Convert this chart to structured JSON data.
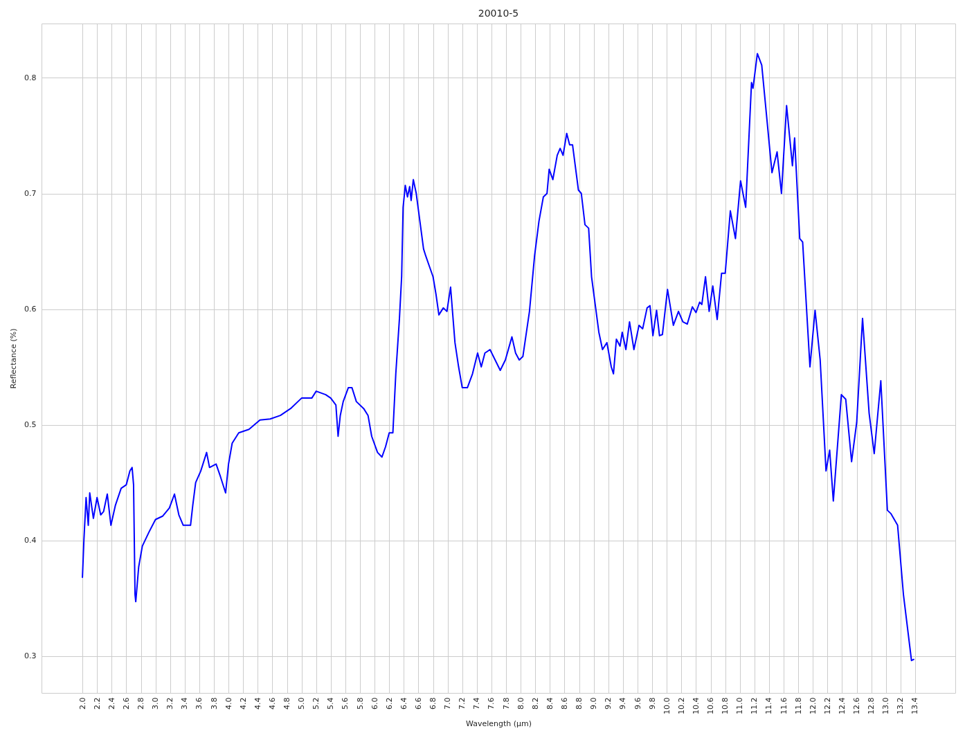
{
  "chart_data": {
    "type": "line",
    "title": "20010-5",
    "xlabel": "Wavelength (µm)",
    "ylabel": "Reflectance (%)",
    "xlim": [
      1.44,
      13.95
    ],
    "ylim": [
      0.268,
      0.847
    ],
    "xticks": [
      {
        "value": 2,
        "label": "2.0"
      },
      2.2,
      2.4,
      2.6,
      2.8,
      {
        "value": 3,
        "label": "3.0"
      },
      3.2,
      3.4,
      3.6,
      3.8,
      {
        "value": 4,
        "label": "4.0"
      },
      4.2,
      4.4,
      4.6,
      4.8,
      {
        "value": 5,
        "label": "5.0"
      },
      5.2,
      5.4,
      5.6,
      5.8,
      {
        "value": 6,
        "label": "6.0"
      },
      6.2,
      6.4,
      6.6,
      6.8,
      {
        "value": 7,
        "label": "7.0"
      },
      7.2,
      7.4,
      7.6,
      7.8,
      {
        "value": 8,
        "label": "8.0"
      },
      8.2,
      8.4,
      8.6,
      8.8,
      {
        "value": 9,
        "label": "9.0"
      },
      9.2,
      9.4,
      9.6,
      9.8,
      {
        "value": 10,
        "label": "10.0"
      },
      10.2,
      10.4,
      10.6,
      10.8,
      {
        "value": 11,
        "label": "11.0"
      },
      11.2,
      11.4,
      11.6,
      11.8,
      {
        "value": 12,
        "label": "12.0"
      },
      12.2,
      12.4,
      12.6,
      12.8,
      {
        "value": 13,
        "label": "13.0"
      },
      13.2,
      13.4
    ],
    "yticks": [
      0.3,
      0.4,
      0.5,
      0.6,
      0.7,
      0.8
    ],
    "grid": true,
    "line_style": "solid",
    "x": [
      2.0,
      2.02,
      2.05,
      2.08,
      2.1,
      2.15,
      2.2,
      2.25,
      2.29,
      2.34,
      2.39,
      2.45,
      2.53,
      2.6,
      2.65,
      2.68,
      2.7,
      2.72,
      2.73,
      2.77,
      2.82,
      2.91,
      3.0,
      3.1,
      3.19,
      3.26,
      3.32,
      3.38,
      3.48,
      3.51,
      3.55,
      3.62,
      3.7,
      3.74,
      3.83,
      3.89,
      3.96,
      4.0,
      4.05,
      4.14,
      4.28,
      4.43,
      4.57,
      4.71,
      4.85,
      5.0,
      5.14,
      5.2,
      5.33,
      5.4,
      5.47,
      5.5,
      5.53,
      5.57,
      5.64,
      5.69,
      5.75,
      5.85,
      5.91,
      5.96,
      6.04,
      6.1,
      6.15,
      6.2,
      6.25,
      6.29,
      6.34,
      6.37,
      6.39,
      6.42,
      6.45,
      6.48,
      6.5,
      6.53,
      6.57,
      6.62,
      6.67,
      6.7,
      6.75,
      6.8,
      6.84,
      6.88,
      6.94,
      6.99,
      7.04,
      7.1,
      7.15,
      7.2,
      7.27,
      7.34,
      7.41,
      7.46,
      7.51,
      7.58,
      7.65,
      7.72,
      7.79,
      7.88,
      7.93,
      7.98,
      8.03,
      8.12,
      8.19,
      8.25,
      8.31,
      8.36,
      8.39,
      8.44,
      8.5,
      8.54,
      8.58,
      8.63,
      8.67,
      8.71,
      8.79,
      8.83,
      8.88,
      8.93,
      8.97,
      9.02,
      9.07,
      9.12,
      9.18,
      9.24,
      9.27,
      9.31,
      9.36,
      9.39,
      9.44,
      9.49,
      9.55,
      9.62,
      9.67,
      9.73,
      9.77,
      9.81,
      9.86,
      9.9,
      9.94,
      10.01,
      10.09,
      10.16,
      10.22,
      10.28,
      10.35,
      10.4,
      10.45,
      10.48,
      10.53,
      10.58,
      10.63,
      10.69,
      10.75,
      10.8,
      10.87,
      10.94,
      11.01,
      11.08,
      11.16,
      11.18,
      11.24,
      11.3,
      11.44,
      11.51,
      11.57,
      11.64,
      11.72,
      11.75,
      11.82,
      11.86,
      11.96,
      12.03,
      12.1,
      12.18,
      12.23,
      12.28,
      12.39,
      12.45,
      12.53,
      12.6,
      12.68,
      12.77,
      12.84,
      12.93,
      13.02,
      13.07,
      13.16,
      13.24,
      13.35,
      13.38
    ],
    "series": [
      {
        "color": "#0000ff",
        "values": [
          0.368,
          0.4,
          0.437,
          0.413,
          0.441,
          0.419,
          0.437,
          0.422,
          0.425,
          0.44,
          0.413,
          0.43,
          0.445,
          0.448,
          0.46,
          0.463,
          0.448,
          0.353,
          0.347,
          0.377,
          0.395,
          0.407,
          0.418,
          0.421,
          0.428,
          0.44,
          0.422,
          0.413,
          0.413,
          0.43,
          0.45,
          0.46,
          0.476,
          0.463,
          0.466,
          0.455,
          0.441,
          0.466,
          0.484,
          0.493,
          0.496,
          0.504,
          0.505,
          0.508,
          0.514,
          0.523,
          0.523,
          0.529,
          0.526,
          0.523,
          0.517,
          0.49,
          0.508,
          0.52,
          0.532,
          0.532,
          0.52,
          0.514,
          0.508,
          0.49,
          0.476,
          0.472,
          0.481,
          0.493,
          0.493,
          0.544,
          0.592,
          0.628,
          0.688,
          0.707,
          0.697,
          0.706,
          0.694,
          0.712,
          0.7,
          0.676,
          0.652,
          0.646,
          0.637,
          0.628,
          0.613,
          0.595,
          0.601,
          0.598,
          0.619,
          0.571,
          0.55,
          0.532,
          0.532,
          0.544,
          0.562,
          0.55,
          0.562,
          0.565,
          0.556,
          0.547,
          0.556,
          0.576,
          0.562,
          0.556,
          0.559,
          0.598,
          0.646,
          0.676,
          0.697,
          0.7,
          0.721,
          0.712,
          0.733,
          0.739,
          0.733,
          0.752,
          0.742,
          0.742,
          0.703,
          0.7,
          0.673,
          0.67,
          0.628,
          0.604,
          0.58,
          0.565,
          0.571,
          0.55,
          0.544,
          0.574,
          0.568,
          0.58,
          0.565,
          0.589,
          0.565,
          0.586,
          0.583,
          0.601,
          0.603,
          0.577,
          0.599,
          0.577,
          0.578,
          0.617,
          0.586,
          0.598,
          0.589,
          0.587,
          0.602,
          0.597,
          0.606,
          0.604,
          0.628,
          0.598,
          0.62,
          0.591,
          0.631,
          0.631,
          0.685,
          0.661,
          0.711,
          0.688,
          0.796,
          0.791,
          0.821,
          0.811,
          0.718,
          0.736,
          0.7,
          0.776,
          0.724,
          0.748,
          0.661,
          0.658,
          0.55,
          0.599,
          0.556,
          0.46,
          0.478,
          0.434,
          0.526,
          0.522,
          0.468,
          0.502,
          0.592,
          0.51,
          0.475,
          0.538,
          0.426,
          0.423,
          0.413,
          0.353,
          0.296,
          0.297
        ]
      }
    ]
  }
}
